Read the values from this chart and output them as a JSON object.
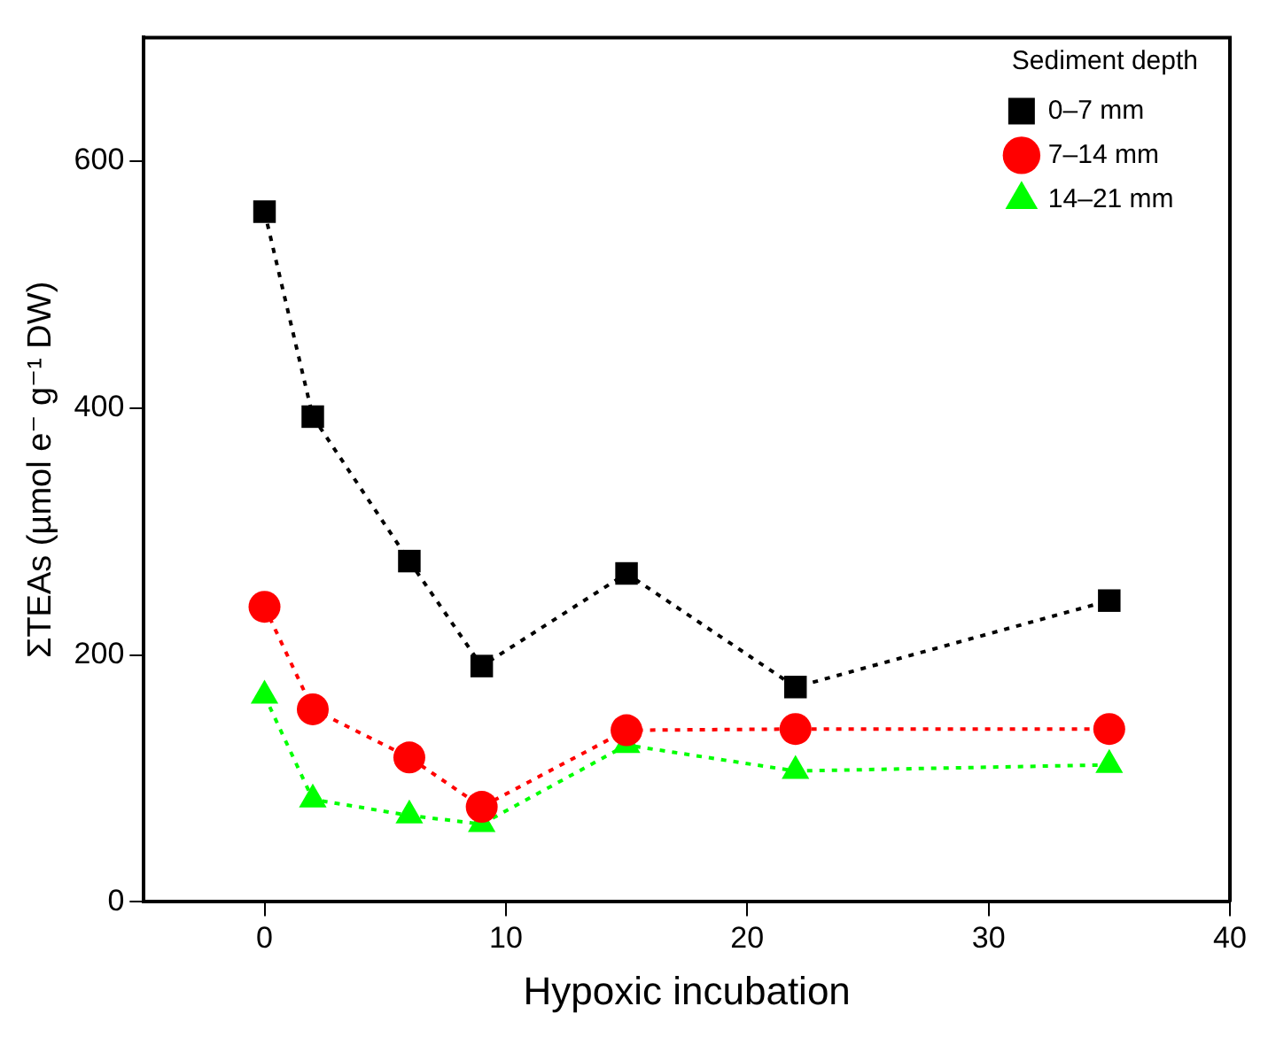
{
  "chart_data": {
    "type": "line",
    "xlabel": "Hypoxic incubation",
    "ylabel": "ΣTEAs (µmol e⁻ g⁻¹ DW)",
    "legend_title": "Sediment depth",
    "legend": "top right",
    "line_style": "dotted",
    "grid": false,
    "xlim": [
      -5,
      40
    ],
    "xticks": [
      0,
      10,
      20,
      30,
      40
    ],
    "ylim": [
      0,
      700
    ],
    "yticks": [
      0,
      200,
      400,
      600
    ],
    "x": [
      0,
      2,
      6,
      9,
      15,
      22,
      35
    ],
    "series": [
      {
        "name": "0–7 mm",
        "color": "#000000",
        "marker": "square",
        "values": [
          559,
          393,
          276,
          191,
          266,
          174,
          244
        ]
      },
      {
        "name": "7–14 mm",
        "color": "#ff0000",
        "marker": "circle",
        "values": [
          239,
          156,
          117,
          77,
          139,
          140,
          140
        ]
      },
      {
        "name": "14–21 mm",
        "color": "#00ff00",
        "marker": "triangle",
        "values": [
          167,
          83,
          70,
          63,
          127,
          106,
          111
        ]
      }
    ]
  }
}
